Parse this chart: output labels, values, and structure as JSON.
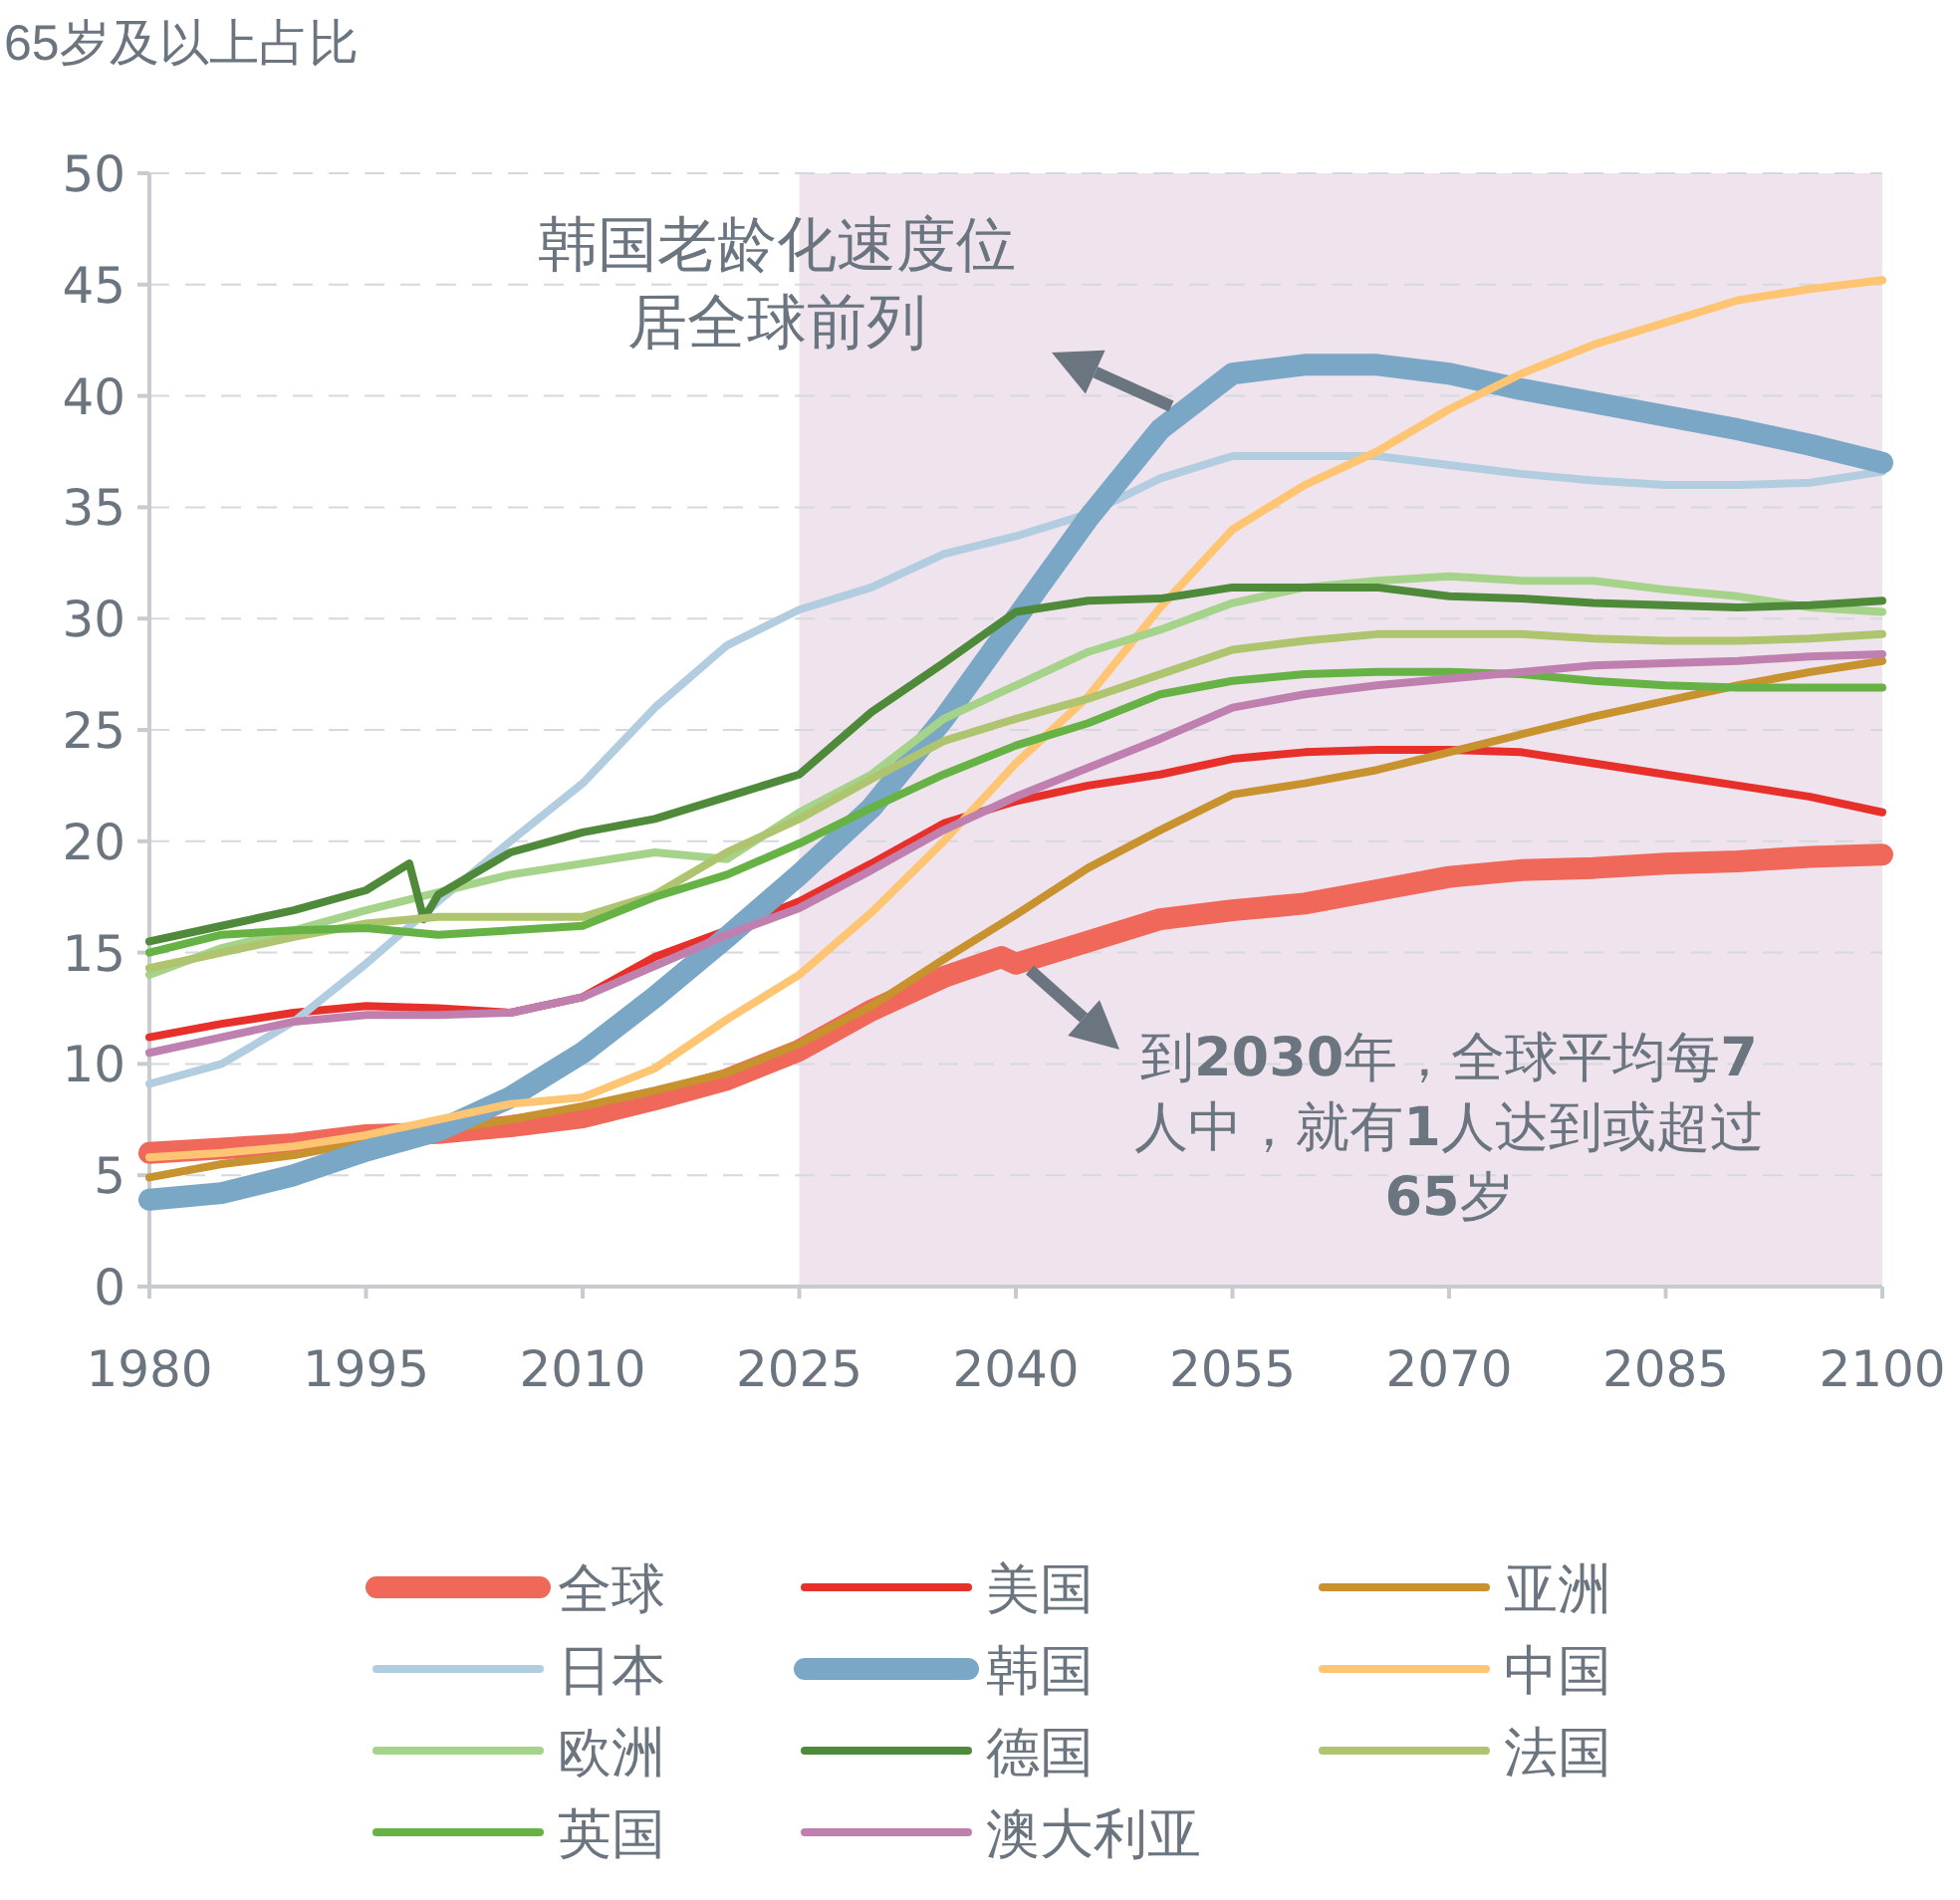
{
  "chart_data": {
    "type": "line",
    "ylabel": "65岁及以上占比",
    "x": [
      1980,
      1985,
      1990,
      1995,
      2000,
      2005,
      2010,
      2015,
      2020,
      2025,
      2030,
      2035,
      2040,
      2045,
      2050,
      2055,
      2060,
      2065,
      2070,
      2075,
      2080,
      2085,
      2090,
      2095,
      2100
    ],
    "xlim": [
      1980,
      2100
    ],
    "xticks": [
      1980,
      1995,
      2010,
      2025,
      2040,
      2055,
      2070,
      2085,
      2100
    ],
    "ylim": [
      0,
      50
    ],
    "yticks": [
      0,
      5,
      10,
      15,
      20,
      25,
      30,
      35,
      40,
      45,
      50
    ],
    "grid": "y",
    "legend": "bottom",
    "line_style": "solid",
    "marker": "none",
    "bands": [
      {
        "axis": "x",
        "from": 2025,
        "to": 2100,
        "color": "#efe4ee"
      }
    ],
    "annotations": [
      "韩国老龄化速度位居全球前列",
      "到**2030**年，全球平均每**7**人中，就有**1**人达到或超过**65**岁"
    ],
    "series": [
      {
        "name": "全球",
        "color": "#f0685a",
        "x": [
          1980,
          1985,
          1990,
          1995,
          2000,
          2005,
          2010,
          2015,
          2020,
          2025,
          2030,
          2035,
          2039,
          2040,
          2045,
          2050,
          2055,
          2060,
          2065,
          2070,
          2075,
          2080,
          2085,
          2090,
          2095,
          2100
        ],
        "values": [
          6.0,
          6.2,
          6.4,
          6.8,
          6.9,
          7.2,
          7.6,
          8.4,
          9.3,
          10.6,
          12.4,
          13.9,
          14.8,
          14.5,
          15.5,
          16.5,
          16.9,
          17.2,
          17.8,
          18.4,
          18.7,
          18.8,
          19.0,
          19.1,
          19.3,
          19.4
        ]
      },
      {
        "name": "美国",
        "color": "#e8302a",
        "values": [
          11.2,
          11.8,
          12.3,
          12.6,
          12.5,
          12.3,
          13.0,
          14.8,
          16.0,
          17.3,
          19.0,
          20.8,
          21.8,
          22.5,
          23.0,
          23.7,
          24.0,
          24.1,
          24.1,
          24.0,
          23.5,
          23.0,
          22.5,
          22.0,
          21.3
        ]
      },
      {
        "name": "亚洲",
        "color": "#c8922e",
        "values": [
          4.9,
          5.5,
          5.9,
          6.5,
          7.0,
          7.5,
          8.1,
          8.8,
          9.6,
          10.9,
          12.6,
          14.7,
          16.7,
          18.8,
          20.5,
          22.1,
          22.6,
          23.2,
          24.0,
          24.8,
          25.6,
          26.3,
          27.0,
          27.6,
          28.1
        ]
      },
      {
        "name": "日本",
        "color": "#b3cde0",
        "values": [
          9.1,
          10.0,
          11.9,
          14.5,
          17.3,
          20.0,
          22.6,
          26.0,
          28.8,
          30.4,
          31.4,
          32.9,
          33.7,
          34.7,
          36.3,
          37.3,
          37.3,
          37.3,
          36.9,
          36.5,
          36.2,
          36.0,
          36.0,
          36.1,
          36.6
        ]
      },
      {
        "name": "韩国",
        "color": "#7ba7c7",
        "values": [
          3.9,
          4.2,
          5.0,
          6.1,
          7.0,
          8.5,
          10.5,
          13.0,
          15.7,
          18.5,
          21.5,
          25.5,
          30.0,
          34.5,
          38.5,
          41.0,
          41.4,
          41.4,
          41.0,
          40.3,
          39.7,
          39.1,
          38.5,
          37.8,
          37.0
        ]
      },
      {
        "name": "中国",
        "color": "#ffc572",
        "values": [
          5.8,
          6.0,
          6.3,
          6.8,
          7.5,
          8.2,
          8.5,
          9.8,
          12.0,
          14.0,
          16.8,
          20.0,
          23.5,
          26.5,
          30.5,
          34.0,
          36.0,
          37.5,
          39.4,
          41.0,
          42.3,
          43.3,
          44.3,
          44.8,
          45.2
        ]
      },
      {
        "name": "欧洲",
        "color": "#a5d38a",
        "values": [
          14.0,
          15.2,
          16.0,
          16.9,
          17.7,
          18.5,
          19.0,
          19.5,
          19.2,
          21.3,
          23.0,
          25.5,
          27.0,
          28.5,
          29.5,
          30.7,
          31.4,
          31.7,
          31.9,
          31.7,
          31.7,
          31.3,
          31.0,
          30.5,
          30.3
        ]
      },
      {
        "name": "德国",
        "color": "#4e8a3a",
        "x": [
          1980,
          1985,
          1990,
          1995,
          1998,
          1999,
          2000,
          2005,
          2010,
          2015,
          2020,
          2025,
          2030,
          2035,
          2040,
          2045,
          2050,
          2055,
          2060,
          2065,
          2070,
          2075,
          2080,
          2085,
          2090,
          2095,
          2100
        ],
        "values": [
          15.5,
          16.2,
          16.9,
          17.8,
          19.0,
          16.5,
          17.6,
          19.5,
          20.4,
          21.0,
          22.0,
          23.0,
          25.8,
          28.0,
          30.3,
          30.8,
          30.9,
          31.4,
          31.4,
          31.4,
          31.0,
          30.9,
          30.7,
          30.6,
          30.5,
          30.6,
          30.8
        ]
      },
      {
        "name": "法国",
        "color": "#afc46e",
        "values": [
          14.3,
          15.0,
          15.7,
          16.3,
          16.6,
          16.6,
          16.6,
          17.6,
          19.5,
          21.0,
          22.8,
          24.5,
          25.5,
          26.4,
          27.5,
          28.6,
          29.0,
          29.3,
          29.3,
          29.3,
          29.1,
          29.0,
          29.0,
          29.1,
          29.3
        ]
      },
      {
        "name": "英国",
        "color": "#66b245",
        "values": [
          15.0,
          15.8,
          16.0,
          16.1,
          15.8,
          16.0,
          16.2,
          17.5,
          18.5,
          19.9,
          21.5,
          23.0,
          24.3,
          25.3,
          26.6,
          27.2,
          27.5,
          27.6,
          27.6,
          27.5,
          27.2,
          27.0,
          26.9,
          26.9,
          26.9
        ]
      },
      {
        "name": "澳大利亚",
        "color": "#bf80b0",
        "values": [
          10.5,
          11.2,
          11.9,
          12.2,
          12.2,
          12.3,
          13.0,
          14.4,
          15.8,
          17.0,
          18.7,
          20.5,
          22.0,
          23.3,
          24.6,
          26.0,
          26.6,
          27.0,
          27.3,
          27.6,
          27.9,
          28.0,
          28.1,
          28.3,
          28.4
        ]
      }
    ]
  }
}
